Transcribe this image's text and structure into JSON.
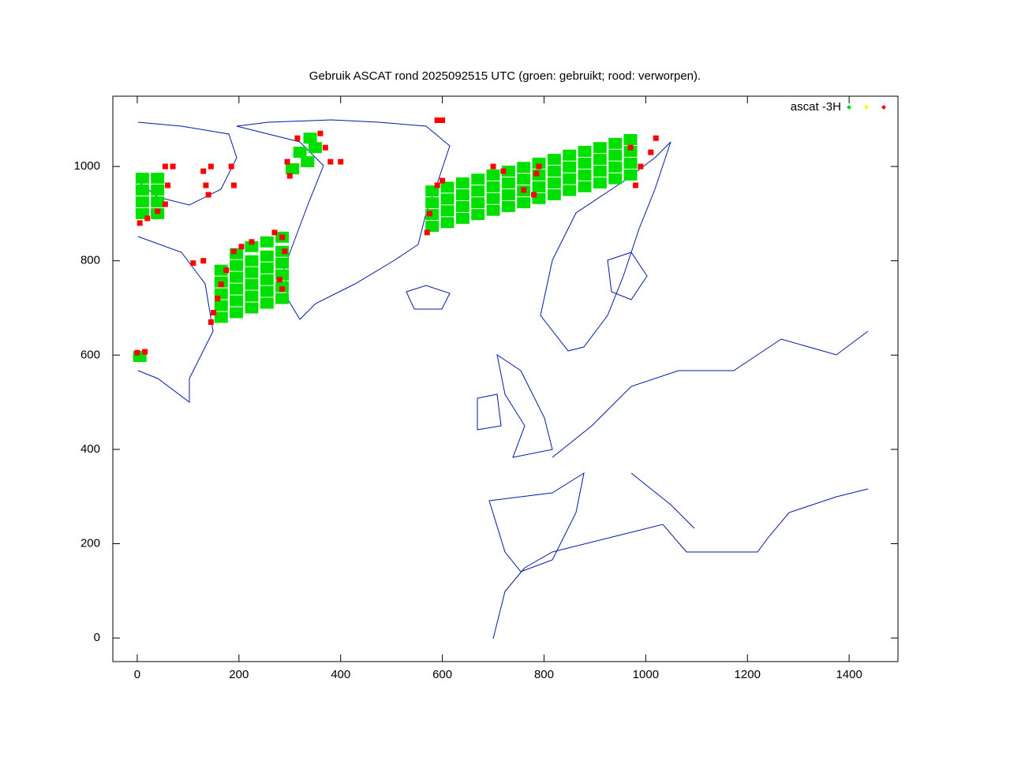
{
  "chart_data": {
    "type": "scatter",
    "title": "Gebruik ASCAT rond 2025092515 UTC (groen: gebruikt; rood: verworpen).",
    "xlim": [
      -48,
      1496
    ],
    "ylim": [
      -50,
      1149
    ],
    "xticks": [
      0,
      200,
      400,
      600,
      800,
      1000,
      1200,
      1400
    ],
    "yticks": [
      0,
      200,
      400,
      600,
      800,
      1000
    ],
    "legend": "top-right",
    "series": [
      {
        "name": "ascat -3H",
        "color": "#00e000",
        "x": [
          580,
          580,
          580,
          580,
          610,
          610,
          610,
          610,
          640,
          640,
          640,
          640,
          670,
          670,
          670,
          670,
          700,
          700,
          700,
          700,
          730,
          730,
          730,
          730,
          760,
          760,
          760,
          760,
          790,
          790,
          790,
          790,
          820,
          820,
          820,
          820,
          850,
          850,
          850,
          850,
          880,
          880,
          880,
          880,
          910,
          910,
          910,
          910,
          940,
          940,
          940,
          940,
          970,
          970,
          970,
          970,
          165,
          165,
          165,
          165,
          165,
          195,
          195,
          195,
          195,
          195,
          195,
          225,
          225,
          225,
          225,
          225,
          225,
          255,
          255,
          255,
          255,
          255,
          255,
          285,
          285,
          285,
          285,
          285,
          285,
          10,
          10,
          10,
          10,
          40,
          40,
          40,
          40,
          305,
          335,
          320,
          350,
          340,
          5
        ],
        "values": [
          873,
          898,
          923,
          948,
          881,
          906,
          931,
          956,
          890,
          915,
          940,
          965,
          898,
          923,
          948,
          973,
          907,
          932,
          957,
          982,
          915,
          940,
          965,
          990,
          923,
          948,
          973,
          998,
          932,
          957,
          982,
          1007,
          940,
          965,
          990,
          1015,
          949,
          974,
          999,
          1024,
          957,
          982,
          1007,
          1032,
          965,
          990,
          1015,
          1040,
          974,
          999,
          1024,
          1049,
          982,
          1007,
          1032,
          1057,
          680,
          705,
          730,
          755,
          780,
          690,
          715,
          740,
          765,
          790,
          815,
          700,
          725,
          750,
          775,
          800,
          830,
          710,
          735,
          760,
          785,
          810,
          840,
          720,
          745,
          770,
          795,
          820,
          850,
          900,
          925,
          950,
          975,
          900,
          925,
          950,
          975,
          995,
          1010,
          1030,
          1040,
          1060,
          597
        ]
      },
      {
        "color": "#ffff00",
        "x": [],
        "values": []
      },
      {
        "color": "#ff0000",
        "x": [
          5,
          20,
          40,
          55,
          60,
          55,
          70,
          145,
          150,
          158,
          165,
          175,
          190,
          205,
          225,
          270,
          285,
          290,
          280,
          285,
          130,
          110,
          570,
          575,
          590,
          600,
          700,
          720,
          785,
          790,
          780,
          760,
          980,
          990,
          1010,
          1020,
          970,
          300,
          295,
          315,
          360,
          370,
          380,
          400,
          130,
          145,
          185,
          190,
          135,
          140,
          590,
          600,
          0,
          15
        ],
        "values": [
          880,
          890,
          905,
          920,
          960,
          1000,
          1000,
          670,
          690,
          720,
          750,
          780,
          820,
          830,
          840,
          860,
          850,
          820,
          760,
          740,
          800,
          795,
          860,
          900,
          960,
          970,
          1000,
          990,
          985,
          1000,
          940,
          950,
          960,
          1000,
          1030,
          1060,
          1040,
          980,
          1010,
          1060,
          1070,
          1040,
          1010,
          1010,
          990,
          1000,
          1000,
          960,
          960,
          940,
          1098,
          1098,
          605,
          607
        ]
      }
    ]
  }
}
